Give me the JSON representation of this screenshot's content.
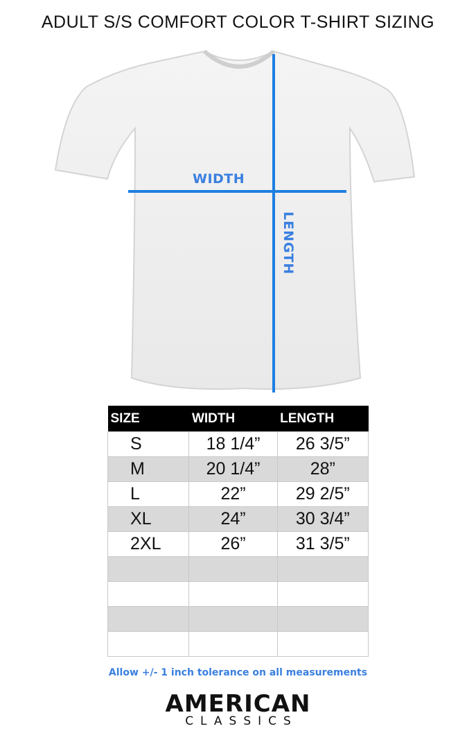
{
  "title": "ADULT S/S COMFORT COLOR T-SHIRT SIZING",
  "diagram": {
    "width_label": "WIDTH",
    "length_label": "LENGTH",
    "line_color": "#1e7fe0"
  },
  "table": {
    "headers": [
      "SIZE",
      "WIDTH",
      "LENGTH"
    ],
    "rows": [
      [
        "S",
        "18 1/4”",
        "26 3/5”"
      ],
      [
        "M",
        "20 1/4”",
        "28”"
      ],
      [
        "L",
        "22”",
        "29 2/5”"
      ],
      [
        "XL",
        "24”",
        "30 3/4”"
      ],
      [
        "2XL",
        "26”",
        "31 3/5”"
      ],
      [
        "",
        "",
        ""
      ],
      [
        "",
        "",
        ""
      ],
      [
        "",
        "",
        ""
      ],
      [
        "",
        "",
        ""
      ]
    ]
  },
  "note": "Allow +/- 1 inch tolerance on all measurements",
  "logo": {
    "line1": "AMERICAN",
    "line2": "CLASSICS"
  }
}
